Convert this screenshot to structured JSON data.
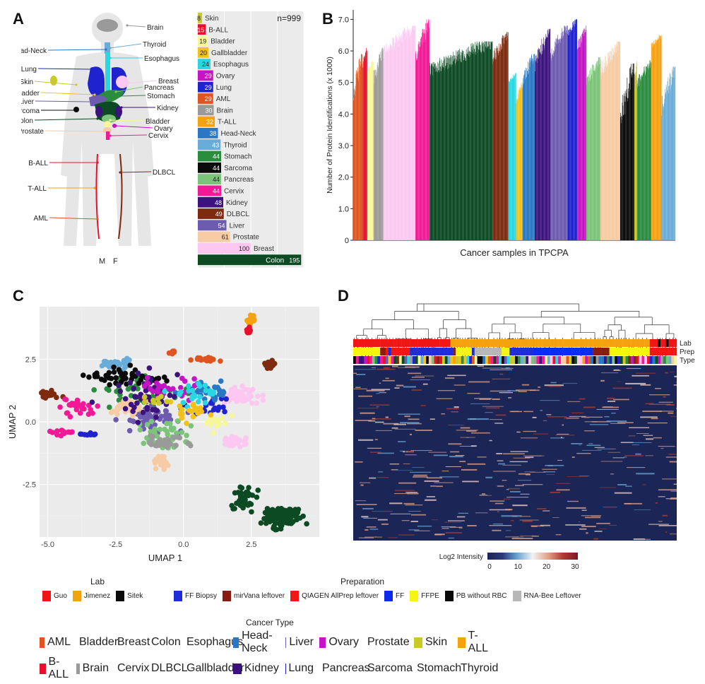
{
  "panels": {
    "a": "A",
    "b": "B",
    "c": "C",
    "d": "D"
  },
  "anatomy": {
    "labels": [
      "Brain",
      "Thyroid",
      "Head-Neck",
      "Esophagus",
      "Lung",
      "Breast",
      "Skin",
      "Pancreas",
      "Gallbladder",
      "Stomach",
      "Liver",
      "Kidney",
      "Sarcoma",
      "Colon",
      "Bladder",
      "Ovary",
      "Prostate",
      "Cervix",
      "B-ALL",
      "DLBCL",
      "T-ALL",
      "AML"
    ],
    "sex_labels": [
      "M",
      "F"
    ]
  },
  "colors": {
    "Skin": "#c9c92a",
    "B-ALL": "#e8102f",
    "Bladder": "#f7f799",
    "Gallbladder": "#f2c21b",
    "Esophagus": "#27d8e3",
    "Ovary": "#c414c4",
    "Lung": "#1e22cf",
    "AML": "#e0541f",
    "Brain": "#9a9a9a",
    "T-ALL": "#f5a20f",
    "Head-Neck": "#2a78c4",
    "Thyroid": "#69acd9",
    "Stomach": "#2a8c3d",
    "Pancreas": "#7cc47a",
    "Sarcoma": "#0b0b0b",
    "Cervix": "#f21996",
    "Kidney": "#3c137e",
    "DLBCL": "#7d2a0e",
    "Liver": "#6d5bb0",
    "Prostate": "#f7cba3",
    "Breast": "#fcc8f2",
    "Colon": "#0c4a24"
  },
  "chart_data": [
    {
      "type": "bar",
      "orientation": "horizontal",
      "annotation": "n=999",
      "xlabel": "Cancer Samples in TPCPA",
      "xlim": [
        0,
        200
      ],
      "xticks": [
        0,
        50,
        100,
        150,
        200
      ],
      "categories": [
        "Skin",
        "B-ALL",
        "Bladder",
        "Gallbladder",
        "Esophagus",
        "Ovary",
        "Lung",
        "AML",
        "Brain",
        "T-ALL",
        "Head-Neck",
        "Thyroid",
        "Stomach",
        "Sarcoma",
        "Pancreas",
        "Cervix",
        "Kidney",
        "DLBCL",
        "Liver",
        "Prostate",
        "Breast",
        "Colon"
      ],
      "values": [
        8,
        15,
        19,
        20,
        24,
        29,
        29,
        29,
        30,
        32,
        38,
        43,
        44,
        44,
        44,
        44,
        48,
        49,
        54,
        61,
        100,
        195
      ]
    },
    {
      "type": "bar",
      "xlabel": "Cancer samples in TPCPA",
      "ylabel": "Number of Protein Identifications (x 1000)",
      "ylim": [
        0,
        7.3
      ],
      "yticks": [
        "0",
        "1.0",
        "2.0",
        "3.0",
        "4.0",
        "5.0",
        "6.0",
        "7.0"
      ],
      "segments": [
        {
          "type": "AML",
          "n": 29,
          "min": 4.0,
          "max": 5.9
        },
        {
          "type": "B-ALL",
          "n": 15,
          "min": 5.3,
          "max": 6.1
        },
        {
          "type": "Bladder",
          "n": 19,
          "min": 5.2,
          "max": 5.7
        },
        {
          "type": "Brain",
          "n": 30,
          "min": 4.6,
          "max": 6.1
        },
        {
          "type": "Breast",
          "n": 100,
          "min": 5.5,
          "max": 6.8
        },
        {
          "type": "Cervix",
          "n": 44,
          "min": 5.2,
          "max": 7.0
        },
        {
          "type": "Colon",
          "n": 195,
          "min": 4.9,
          "max": 6.3
        },
        {
          "type": "DLBCL",
          "n": 49,
          "min": 5.3,
          "max": 6.6
        },
        {
          "type": "Esophagus",
          "n": 24,
          "min": 4.8,
          "max": 5.3
        },
        {
          "type": "Gallbladder",
          "n": 20,
          "min": 4.1,
          "max": 5.0
        },
        {
          "type": "Head-Neck",
          "n": 38,
          "min": 4.6,
          "max": 5.9
        },
        {
          "type": "Kidney",
          "n": 48,
          "min": 5.0,
          "max": 6.7
        },
        {
          "type": "Liver",
          "n": 54,
          "min": 5.4,
          "max": 6.8
        },
        {
          "type": "Lung",
          "n": 29,
          "min": 6.3,
          "max": 7.0
        },
        {
          "type": "Ovary",
          "n": 29,
          "min": 5.7,
          "max": 6.8
        },
        {
          "type": "Pancreas",
          "n": 44,
          "min": 4.6,
          "max": 5.8
        },
        {
          "type": "Prostate",
          "n": 61,
          "min": 4.9,
          "max": 6.3
        },
        {
          "type": "Sarcoma",
          "n": 44,
          "min": 3.0,
          "max": 5.6
        },
        {
          "type": "Skin",
          "n": 8,
          "min": 4.6,
          "max": 5.7
        },
        {
          "type": "Stomach",
          "n": 44,
          "min": 4.6,
          "max": 5.7
        },
        {
          "type": "T-ALL",
          "n": 32,
          "min": 6.0,
          "max": 6.5
        },
        {
          "type": "Thyroid",
          "n": 43,
          "min": 3.5,
          "max": 5.5
        }
      ]
    },
    {
      "type": "scatter",
      "xlabel": "UMAP 1",
      "ylabel": "UMAP 2",
      "xlim": [
        -5.3,
        5.0
      ],
      "ylim": [
        -4.6,
        4.6
      ],
      "xticks": [
        "-5.0",
        "-2.5",
        "0.0",
        "2.5"
      ],
      "yticks": [
        "-2.5",
        "0.0",
        "2.5"
      ],
      "clusters": [
        {
          "type": "Colon",
          "n": 150,
          "cx": 3.6,
          "cy": -3.8,
          "sx": 0.5,
          "sy": 0.3
        },
        {
          "type": "Colon",
          "n": 45,
          "cx": 2.2,
          "cy": -3.0,
          "sx": 0.35,
          "sy": 0.45
        },
        {
          "type": "Breast",
          "n": 55,
          "cx": 2.0,
          "cy": 1.0,
          "sx": 0.5,
          "sy": 0.3
        },
        {
          "type": "Breast",
          "n": 40,
          "cx": 1.9,
          "cy": -0.8,
          "sx": 0.35,
          "sy": 0.15
        },
        {
          "type": "T-ALL",
          "n": 20,
          "cx": 2.5,
          "cy": 4.1,
          "sx": 0.12,
          "sy": 0.18
        },
        {
          "type": "B-ALL",
          "n": 10,
          "cx": 2.4,
          "cy": 3.6,
          "sx": 0.08,
          "sy": 0.12
        },
        {
          "type": "AML",
          "n": 20,
          "cx": 0.9,
          "cy": 2.5,
          "sx": 0.35,
          "sy": 0.08
        },
        {
          "type": "AML",
          "n": 8,
          "cx": -0.4,
          "cy": 2.8,
          "sx": 0.1,
          "sy": 0.06
        },
        {
          "type": "DLBCL",
          "n": 25,
          "cx": 3.2,
          "cy": 2.3,
          "sx": 0.2,
          "sy": 0.15
        },
        {
          "type": "DLBCL",
          "n": 20,
          "cx": -5.0,
          "cy": 1.1,
          "sx": 0.3,
          "sy": 0.12
        },
        {
          "type": "Thyroid",
          "n": 35,
          "cx": -2.6,
          "cy": 2.3,
          "sx": 0.35,
          "sy": 0.1
        },
        {
          "type": "Thyroid",
          "n": 10,
          "cx": -2.1,
          "cy": 2.3,
          "sx": 0.1,
          "sy": 0.2
        },
        {
          "type": "Cervix",
          "n": 30,
          "cx": -3.8,
          "cy": 0.6,
          "sx": 0.6,
          "sy": 0.3
        },
        {
          "type": "Cervix",
          "n": 14,
          "cx": -4.5,
          "cy": -0.4,
          "sx": 0.4,
          "sy": 0.1
        },
        {
          "type": "Lung",
          "n": 10,
          "cx": -3.5,
          "cy": -0.5,
          "sx": 0.2,
          "sy": 0.05
        },
        {
          "type": "Lung",
          "n": 19,
          "cx": 1.0,
          "cy": 0.6,
          "sx": 0.8,
          "sy": 0.4
        },
        {
          "type": "Liver",
          "n": 54,
          "cx": -1.2,
          "cy": 0.1,
          "sx": 0.9,
          "sy": 0.5
        },
        {
          "type": "Head-Neck",
          "n": 38,
          "cx": 0.8,
          "cy": 1.2,
          "sx": 0.8,
          "sy": 0.3
        },
        {
          "type": "Stomach",
          "n": 44,
          "cx": -1.6,
          "cy": 1.2,
          "sx": 1.3,
          "sy": 0.5
        },
        {
          "type": "Pancreas",
          "n": 44,
          "cx": -0.6,
          "cy": -0.6,
          "sx": 0.9,
          "sy": 0.5
        },
        {
          "type": "Prostate",
          "n": 35,
          "cx": -2.0,
          "cy": 0.6,
          "sx": 0.6,
          "sy": 0.3
        },
        {
          "type": "Prostate",
          "n": 26,
          "cx": -0.8,
          "cy": -1.6,
          "sx": 0.25,
          "sy": 0.25
        },
        {
          "type": "Sarcoma",
          "n": 44,
          "cx": -2.0,
          "cy": 1.8,
          "sx": 1.3,
          "sy": 0.25
        },
        {
          "type": "Kidney",
          "n": 48,
          "cx": -1.3,
          "cy": 1.0,
          "sx": 1.2,
          "sy": 0.8
        },
        {
          "type": "Ovary",
          "n": 29,
          "cx": -0.6,
          "cy": 1.3,
          "sx": 1.0,
          "sy": 0.4
        },
        {
          "type": "Esophagus",
          "n": 24,
          "cx": 0.5,
          "cy": 1.1,
          "sx": 0.7,
          "sy": 0.4
        },
        {
          "type": "Bladder",
          "n": 19,
          "cx": 1.2,
          "cy": 0.0,
          "sx": 0.35,
          "sy": 0.3
        },
        {
          "type": "Gallbladder",
          "n": 20,
          "cx": 0.3,
          "cy": 0.4,
          "sx": 0.5,
          "sy": 0.4
        },
        {
          "type": "Brain",
          "n": 30,
          "cx": -0.6,
          "cy": -0.8,
          "sx": 0.7,
          "sy": 0.3
        },
        {
          "type": "Skin",
          "n": 8,
          "cx": -1.0,
          "cy": 0.8,
          "sx": 0.4,
          "sy": 0.3
        }
      ]
    },
    {
      "type": "heatmap",
      "row_labels": [
        "Lab",
        "Prep",
        "Type"
      ],
      "colorbar": {
        "title": "Log2 Intensity",
        "ticks": [
          "0",
          "10",
          "20",
          "30"
        ],
        "stops": [
          "#1b2656",
          "#2b3b7a",
          "#6ba6d6",
          "#f2f2f2",
          "#e3a48a",
          "#b23b32",
          "#7e1826"
        ]
      }
    }
  ],
  "legends": {
    "lab": {
      "title": "Lab",
      "items": [
        {
          "label": "Guo",
          "color": "#f01616"
        },
        {
          "label": "Jimenez",
          "color": "#f5a20f"
        },
        {
          "label": "Sitek",
          "color": "#0a0a0a"
        }
      ]
    },
    "prep": {
      "title": "Preparation",
      "items": [
        {
          "label": "FF Biopsy",
          "color": "#1f2dd6"
        },
        {
          "label": "mirVana leftover",
          "color": "#8b1a10"
        },
        {
          "label": "QIAGEN AllPrep leftover",
          "color": "#f01616"
        },
        {
          "label": "FF",
          "color": "#0b2cf0"
        },
        {
          "label": "FFPE",
          "color": "#f5f50d"
        },
        {
          "label": "PB without RBC",
          "color": "#0a0a0a"
        },
        {
          "label": "RNA-Bee Leftover",
          "color": "#b7b7b7"
        }
      ]
    },
    "type": {
      "title": "Cancer Type",
      "items": [
        "AML",
        "Bladder",
        "Breast",
        "Colon",
        "Esophagus",
        "Head-Neck",
        "Liver",
        "Ovary",
        "Prostate",
        "Skin",
        "T-ALL",
        "B-ALL",
        "Brain",
        "Cervix",
        "DLBCL",
        "Gallbladder",
        "Kidney",
        "Lung",
        "Pancreas",
        "Sarcoma",
        "Stomach",
        "Thyroid"
      ]
    }
  }
}
